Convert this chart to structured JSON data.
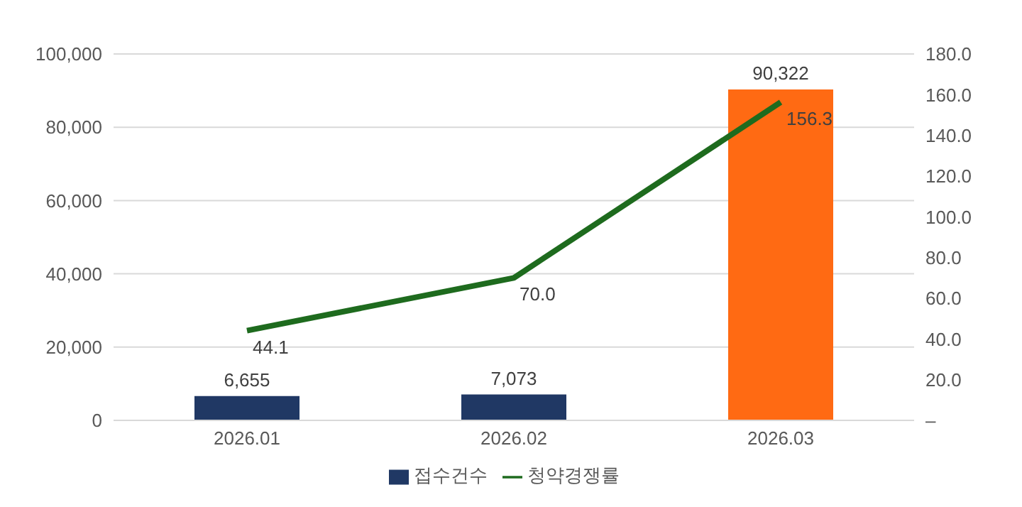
{
  "chart_data": {
    "type": "bar",
    "categories": [
      "2026.01",
      "2026.02",
      "2026.03"
    ],
    "series": [
      {
        "name": "접수건수",
        "colors": [
          "#203864",
          "#203864",
          "#ff6a13"
        ],
        "color": "#203864",
        "values": [
          6655,
          7073,
          90322
        ],
        "value_labels": [
          "6,655",
          "7,073",
          "90,322"
        ]
      },
      {
        "name": "청약경쟁률",
        "type": "line",
        "axis": "y2",
        "color": "#1e6b1e",
        "values": [
          44.1,
          70.0,
          156.3
        ],
        "value_labels": [
          "44.1",
          "70.0",
          "156.3"
        ],
        "marker": "none"
      }
    ],
    "ylim": [
      0,
      100000
    ],
    "yticks": [
      {
        "value": 0,
        "label": "0"
      },
      {
        "value": 20000,
        "label": "20,000"
      },
      {
        "value": 40000,
        "label": "40,000"
      },
      {
        "value": 60000,
        "label": "60,000"
      },
      {
        "value": 80000,
        "label": "80,000"
      },
      {
        "value": 100000,
        "label": "100,000"
      }
    ],
    "y2lim": [
      0,
      180
    ],
    "y2ticks": [
      {
        "value": 0,
        "label": "–"
      },
      {
        "value": 20,
        "label": "20.0"
      },
      {
        "value": 40,
        "label": "40.0"
      },
      {
        "value": 60,
        "label": "60.0"
      },
      {
        "value": 80,
        "label": "80.0"
      },
      {
        "value": 100,
        "label": "100.0"
      },
      {
        "value": 120,
        "label": "120.0"
      },
      {
        "value": 140,
        "label": "140.0"
      },
      {
        "value": 160,
        "label": "160.0"
      },
      {
        "value": 180,
        "label": "180.0"
      }
    ],
    "grid": "y",
    "legend": "bottom"
  }
}
